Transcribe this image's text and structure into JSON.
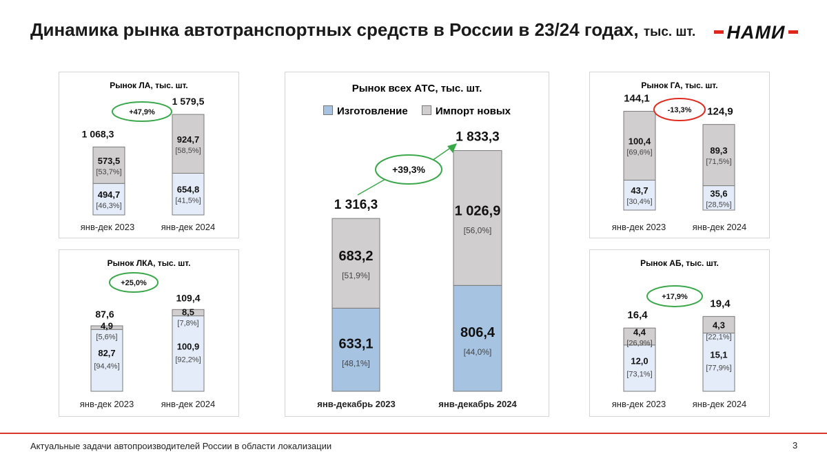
{
  "page": {
    "title": "Динамика рынка автотранспортных средств в России в 23/24 годах,",
    "title_unit": "тыс. шт.",
    "logo": "НАМИ",
    "footer": "Актуальные задачи автопроизводителей России в области локализации",
    "page_number": "3"
  },
  "colors": {
    "production_main": "#a6c3e2",
    "production_small": "#e3ecf8",
    "import": "#d0cecf",
    "growth_oval": "#3aa84a",
    "decline_oval": "#e02a1f",
    "logo_red": "#e0261b"
  },
  "legend": {
    "production": "Изготовление",
    "import": "Импорт новых"
  },
  "chart_data": [
    {
      "id": "la",
      "type": "bar",
      "stacked": true,
      "title": "Рынок ЛА, тыс. шт.",
      "categories": [
        "янв-дек 2023",
        "янв-дек 2024"
      ],
      "totals": [
        "1 068,3",
        "1 579,5"
      ],
      "change": "+47,9%",
      "series": [
        {
          "values": [
            494.7,
            654.8
          ],
          "labels": [
            "494,7",
            "654,8"
          ],
          "shares": [
            "[46,3%]",
            "[41,5%]"
          ]
        },
        {
          "values": [
            573.5,
            924.7
          ],
          "labels": [
            "573,5",
            "924,7"
          ],
          "shares": [
            "[53,7%]",
            "[58,5%]"
          ]
        }
      ]
    },
    {
      "id": "lka",
      "type": "bar",
      "stacked": true,
      "title": "Рынок ЛКА, тыс. шт.",
      "categories": [
        "янв-дек 2023",
        "янв-дек 2024"
      ],
      "totals": [
        "87,6",
        "109,4"
      ],
      "change": "+25,0%",
      "series": [
        {
          "values": [
            82.7,
            100.9
          ],
          "labels": [
            "82,7",
            "100,9"
          ],
          "shares": [
            "[94,4%]",
            "[92,2%]"
          ]
        },
        {
          "values": [
            4.9,
            8.5
          ],
          "labels": [
            "4,9",
            "8,5"
          ],
          "shares": [
            "[5,6%]",
            "[7,8%]"
          ]
        }
      ]
    },
    {
      "id": "ats",
      "type": "bar",
      "stacked": true,
      "title": "Рынок всех АТС, тыс. шт.",
      "legend_position": "top",
      "categories": [
        "янв-декабрь 2023",
        "янв-декабрь 2024"
      ],
      "totals": [
        "1 316,3",
        "1 833,3"
      ],
      "change": "+39,3%",
      "series": [
        {
          "name": "Изготовление",
          "values": [
            633.1,
            806.4
          ],
          "labels": [
            "633,1",
            "806,4"
          ],
          "shares": [
            "[48,1%]",
            "[44,0%]"
          ]
        },
        {
          "name": "Импорт новых",
          "values": [
            683.2,
            1026.9
          ],
          "labels": [
            "683,2",
            "1 026,9"
          ],
          "shares": [
            "[51,9%]",
            "[56,0%]"
          ]
        }
      ]
    },
    {
      "id": "ga",
      "type": "bar",
      "stacked": true,
      "title": "Рынок ГА, тыс. шт.",
      "categories": [
        "янв-дек 2023",
        "янв-дек 2024"
      ],
      "totals": [
        "144,1",
        "124,9"
      ],
      "change": "-13,3%",
      "series": [
        {
          "values": [
            43.7,
            35.6
          ],
          "labels": [
            "43,7",
            "35,6"
          ],
          "shares": [
            "[30,4%]",
            "[28,5%]"
          ]
        },
        {
          "values": [
            100.4,
            89.3
          ],
          "labels": [
            "100,4",
            "89,3"
          ],
          "shares": [
            "[69,6%]",
            "[71,5%]"
          ]
        }
      ]
    },
    {
      "id": "ab",
      "type": "bar",
      "stacked": true,
      "title": "Рынок АБ, тыс. шт.",
      "categories": [
        "янв-дек  2023",
        "янв-дек 2024"
      ],
      "totals": [
        "16,4",
        "19,4"
      ],
      "change": "+17,9%",
      "series": [
        {
          "values": [
            12.0,
            15.1
          ],
          "labels": [
            "12,0",
            "15,1"
          ],
          "shares": [
            "[73,1%]",
            "[77,9%]"
          ]
        },
        {
          "values": [
            4.4,
            4.3
          ],
          "labels": [
            "4,4",
            "4,3"
          ],
          "shares": [
            "[26,9%]",
            "[22,1%]"
          ]
        }
      ]
    }
  ]
}
